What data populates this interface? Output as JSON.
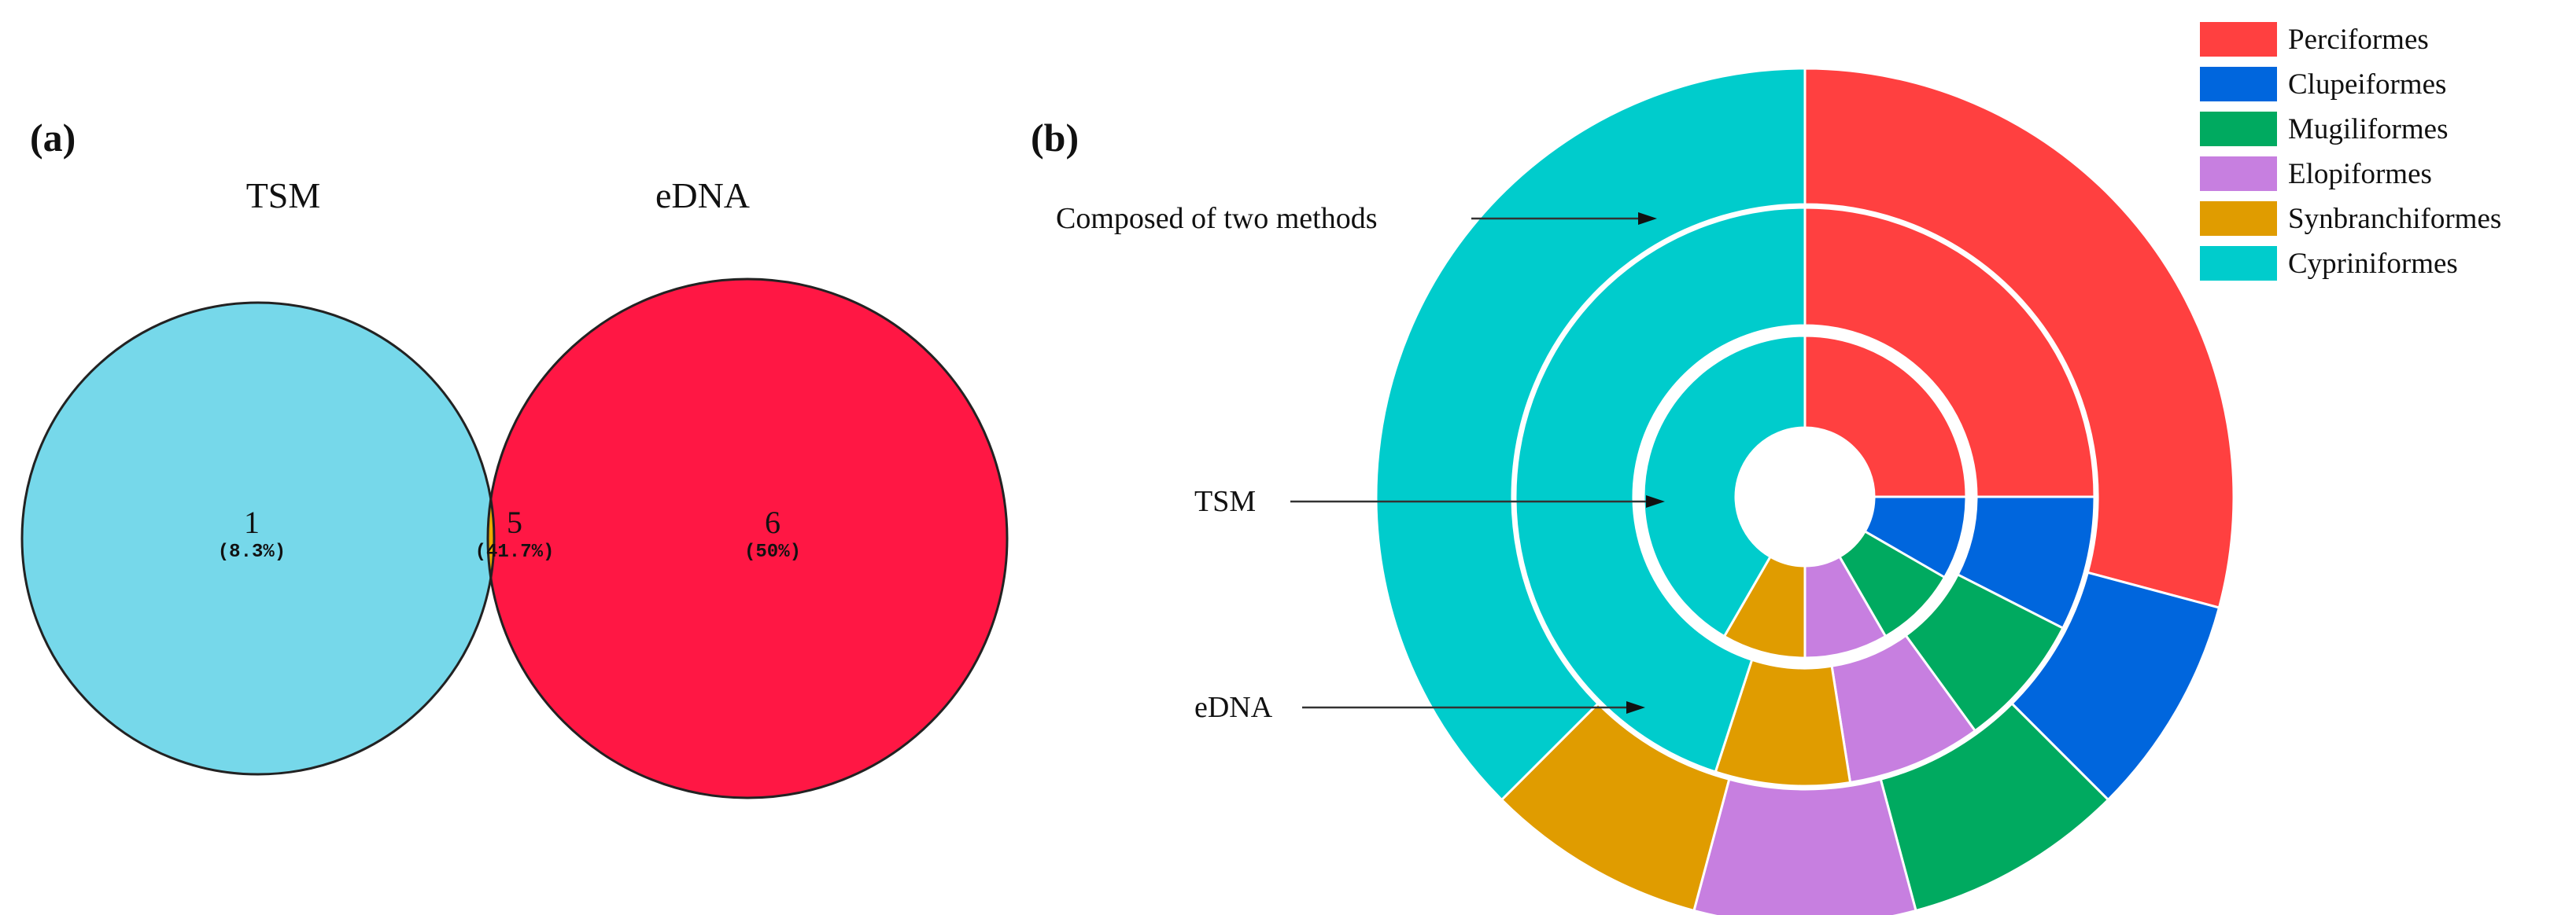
{
  "panels": {
    "a_label": "(a)",
    "b_label": "(b)"
  },
  "chart_data": [
    {
      "type": "venn",
      "sets": [
        {
          "name": "TSM",
          "color": "#76D8EA"
        },
        {
          "name": "eDNA",
          "color": "#FF1744"
        }
      ],
      "intersection_color": "#EEAA00",
      "regions": [
        {
          "key": "tsm_only",
          "count": "1",
          "percent": "(8.3%)"
        },
        {
          "key": "both",
          "count": "5",
          "percent": "(41.7%)"
        },
        {
          "key": "edna_only",
          "count": "6",
          "percent": "(50%)"
        }
      ]
    },
    {
      "type": "pie",
      "subtype": "multi-ring donut (sunburst)",
      "categories": [
        "Perciformes",
        "Clupeiformes",
        "Mugiliformes",
        "Elopiformes",
        "Synbranchiformes",
        "Cypriniformes"
      ],
      "colors": [
        "#FF4040",
        "#0066DD",
        "#00AA60",
        "#C77FE0",
        "#E09C00",
        "#00CCCC"
      ],
      "rings": [
        {
          "name": "TSM",
          "values": [
            3,
            1,
            1,
            1,
            1,
            5
          ]
        },
        {
          "name": "eDNA",
          "values": [
            5,
            1.5,
            1.5,
            1.5,
            1.5,
            9
          ]
        },
        {
          "name": "Composed of two methods",
          "values": [
            7,
            2,
            2,
            2,
            2,
            9
          ]
        }
      ],
      "annotations": [
        "Composed of two methods",
        "TSM",
        "eDNA"
      ],
      "legend_position": "top-right"
    }
  ]
}
